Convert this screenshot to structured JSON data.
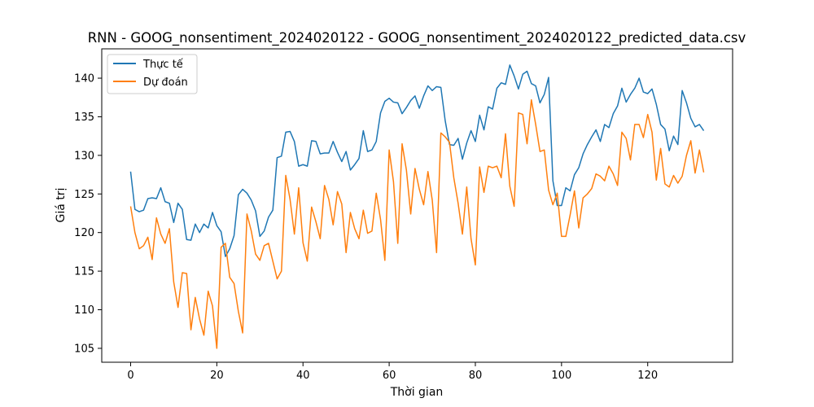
{
  "chart_data": {
    "type": "line",
    "title": "RNN - GOOG_nonsentiment_2024020122 - GOOG_nonsentiment_2024020122_predicted_data.csv",
    "xlabel": "Thời gian",
    "ylabel": "Giá trị",
    "xlim": [
      -6.7,
      139.7
    ],
    "ylim": [
      103.2,
      143.8
    ],
    "xticks": [
      0,
      20,
      40,
      60,
      80,
      100,
      120
    ],
    "yticks": [
      105,
      110,
      115,
      120,
      125,
      130,
      135,
      140
    ],
    "grid": false,
    "legend_position": "top-left",
    "series": [
      {
        "name": "Thực tế",
        "color": "#1f77b4",
        "values": [
          127.9,
          123.0,
          122.7,
          122.9,
          124.4,
          124.5,
          124.4,
          125.8,
          124.0,
          123.8,
          121.3,
          123.8,
          123.0,
          119.1,
          119.0,
          121.1,
          120.0,
          121.1,
          120.6,
          122.6,
          120.9,
          120.1,
          116.9,
          117.9,
          119.6,
          124.9,
          125.6,
          125.1,
          124.2,
          122.8,
          119.5,
          120.2,
          122.0,
          122.9,
          129.7,
          129.9,
          133.0,
          133.1,
          131.8,
          128.6,
          128.8,
          128.6,
          131.9,
          131.8,
          130.2,
          130.3,
          130.3,
          131.8,
          130.4,
          129.2,
          130.5,
          128.1,
          128.8,
          129.6,
          133.2,
          130.5,
          130.7,
          131.8,
          135.5,
          137.0,
          137.4,
          136.9,
          136.8,
          135.4,
          136.2,
          137.1,
          137.7,
          136.1,
          137.7,
          139.0,
          138.4,
          138.9,
          138.8,
          134.5,
          131.4,
          131.3,
          132.2,
          129.5,
          131.6,
          133.2,
          131.8,
          135.2,
          133.3,
          136.3,
          136.0,
          138.7,
          139.4,
          139.2,
          141.7,
          140.3,
          138.6,
          140.5,
          140.9,
          139.3,
          139.0,
          136.8,
          137.9,
          140.1,
          126.7,
          123.5,
          123.5,
          125.8,
          125.4,
          127.5,
          128.4,
          130.2,
          131.4,
          132.4,
          133.3,
          131.8,
          134.0,
          133.6,
          135.4,
          136.4,
          138.7,
          136.9,
          137.9,
          138.7,
          140.0,
          138.2,
          138.0,
          138.6,
          136.6,
          134.0,
          133.4,
          130.6,
          132.5,
          131.4,
          138.4,
          136.8,
          134.8,
          133.7,
          134.0,
          133.2
        ]
      },
      {
        "name": "Dự đoán",
        "color": "#ff7f0e",
        "values": [
          123.4,
          120.0,
          117.9,
          118.3,
          119.4,
          116.5,
          121.9,
          119.8,
          118.6,
          120.5,
          113.6,
          110.3,
          114.8,
          114.7,
          107.4,
          111.6,
          108.8,
          106.7,
          112.4,
          110.5,
          105.0,
          118.1,
          118.6,
          114.2,
          113.4,
          109.8,
          107.0,
          122.4,
          120.2,
          117.2,
          116.4,
          118.3,
          118.6,
          116.3,
          114.0,
          115.0,
          127.4,
          124.3,
          119.8,
          125.8,
          118.7,
          116.3,
          123.3,
          121.4,
          119.2,
          126.1,
          124.3,
          121.0,
          125.3,
          123.7,
          117.4,
          122.6,
          120.5,
          119.2,
          122.9,
          119.9,
          120.2,
          125.1,
          121.7,
          116.4,
          130.7,
          126.6,
          118.6,
          131.5,
          128.1,
          122.4,
          128.3,
          125.6,
          123.6,
          127.9,
          124.2,
          117.4,
          132.9,
          132.4,
          131.7,
          127.1,
          123.8,
          119.8,
          125.9,
          119.2,
          115.8,
          128.5,
          125.2,
          128.6,
          128.4,
          128.6,
          127.1,
          132.8,
          126.0,
          123.4,
          135.5,
          135.3,
          131.5,
          137.2,
          134.0,
          130.5,
          130.7,
          125.5,
          123.6,
          125.1,
          119.5,
          119.5,
          122.3,
          125.4,
          120.6,
          124.5,
          125.0,
          125.7,
          127.6,
          127.3,
          126.7,
          128.6,
          127.6,
          126.1,
          133.0,
          132.2,
          129.4,
          134.0,
          134.0,
          132.3,
          135.3,
          133.0,
          126.8,
          130.9,
          126.3,
          125.9,
          127.4,
          126.4,
          127.3,
          130.0,
          131.9,
          127.7,
          130.7,
          127.8
        ]
      }
    ]
  }
}
